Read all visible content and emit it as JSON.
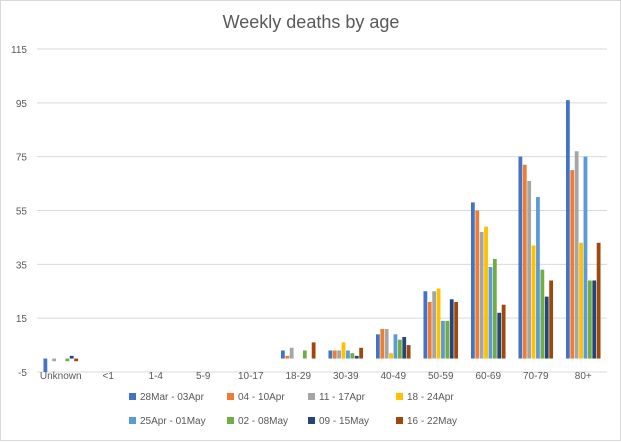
{
  "chart_data": {
    "type": "bar",
    "title": "Weekly deaths by age",
    "xlabel": "",
    "ylabel": "",
    "ylim": [
      -5,
      115
    ],
    "yticks": [
      -5,
      15,
      35,
      55,
      75,
      95,
      115
    ],
    "grid": true,
    "legend_position": "bottom",
    "categories": [
      "Unknown",
      "<1",
      "1-4",
      "5-9",
      "10-17",
      "18-29",
      "30-39",
      "40-49",
      "50-59",
      "60-69",
      "70-79",
      "80+"
    ],
    "series": [
      {
        "name": "28Mar - 03Apr",
        "color": "#4472C4",
        "values": [
          -5,
          0,
          0,
          0,
          0,
          3,
          3,
          9,
          25,
          58,
          75,
          96
        ]
      },
      {
        "name": "04 - 10Apr",
        "color": "#ED7D31",
        "values": [
          0,
          0,
          0,
          0,
          0,
          1,
          3,
          11,
          21,
          55,
          72,
          70
        ]
      },
      {
        "name": "11 - 17Apr",
        "color": "#A5A5A5",
        "values": [
          -1,
          0,
          0,
          0,
          0,
          4,
          3,
          11,
          25,
          47,
          66,
          77
        ]
      },
      {
        "name": "18 - 24Apr",
        "color": "#FFC000",
        "values": [
          0,
          0,
          0,
          0,
          0,
          0,
          6,
          2,
          26,
          49,
          42,
          43
        ]
      },
      {
        "name": "25Apr - 01May",
        "color": "#5B9BD5",
        "values": [
          0,
          0,
          0,
          0,
          0,
          0,
          3,
          9,
          14,
          34,
          60,
          75
        ]
      },
      {
        "name": "02 - 08May",
        "color": "#70AD47",
        "values": [
          -1,
          0,
          0,
          0,
          0,
          3,
          2,
          7,
          14,
          37,
          33,
          29
        ]
      },
      {
        "name": "09 - 15May",
        "color": "#264478",
        "values": [
          1,
          0,
          0,
          0,
          0,
          0,
          1,
          8,
          22,
          17,
          23,
          29
        ]
      },
      {
        "name": "16 - 22May",
        "color": "#9E480E",
        "values": [
          -1,
          0,
          0,
          0,
          0,
          6,
          4,
          5,
          21,
          20,
          29,
          43
        ]
      }
    ]
  }
}
